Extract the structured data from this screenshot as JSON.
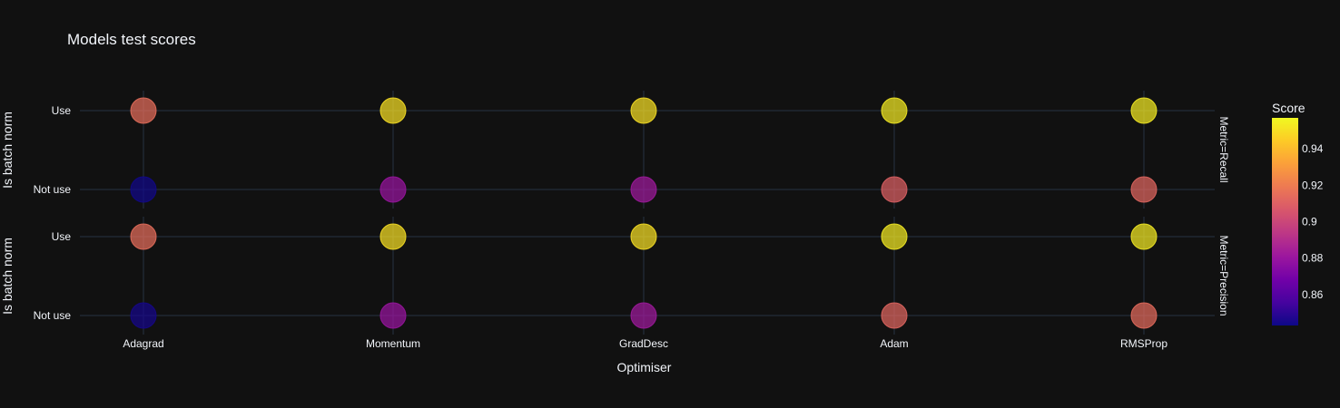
{
  "chart_data": {
    "type": "scatter",
    "title": "Models test scores",
    "xlabel": "Optimiser",
    "ylabel": "Is batch norm",
    "categories": [
      "Adagrad",
      "Momentum",
      "GradDesc",
      "Adam",
      "RMSProp"
    ],
    "y_categories": [
      "Not use",
      "Use"
    ],
    "facets": [
      {
        "label": "Metric=Recall",
        "points": [
          {
            "x": "Adagrad",
            "y": "Use",
            "score": 0.915
          },
          {
            "x": "Momentum",
            "y": "Use",
            "score": 0.95
          },
          {
            "x": "GradDesc",
            "y": "Use",
            "score": 0.95
          },
          {
            "x": "Adam",
            "y": "Use",
            "score": 0.953
          },
          {
            "x": "RMSProp",
            "y": "Use",
            "score": 0.953
          },
          {
            "x": "Adagrad",
            "y": "Not use",
            "score": 0.844
          },
          {
            "x": "Momentum",
            "y": "Not use",
            "score": 0.88
          },
          {
            "x": "GradDesc",
            "y": "Not use",
            "score": 0.882
          },
          {
            "x": "Adam",
            "y": "Not use",
            "score": 0.91
          },
          {
            "x": "RMSProp",
            "y": "Not use",
            "score": 0.912
          }
        ]
      },
      {
        "label": "Metric=Precision",
        "points": [
          {
            "x": "Adagrad",
            "y": "Use",
            "score": 0.915
          },
          {
            "x": "Momentum",
            "y": "Use",
            "score": 0.95
          },
          {
            "x": "GradDesc",
            "y": "Use",
            "score": 0.95
          },
          {
            "x": "Adam",
            "y": "Use",
            "score": 0.953
          },
          {
            "x": "RMSProp",
            "y": "Use",
            "score": 0.953
          },
          {
            "x": "Adagrad",
            "y": "Not use",
            "score": 0.845
          },
          {
            "x": "Momentum",
            "y": "Not use",
            "score": 0.88
          },
          {
            "x": "GradDesc",
            "y": "Not use",
            "score": 0.882
          },
          {
            "x": "Adam",
            "y": "Not use",
            "score": 0.912
          },
          {
            "x": "RMSProp",
            "y": "Not use",
            "score": 0.914
          }
        ]
      }
    ],
    "colorbar": {
      "title": "Score",
      "range": [
        0.843,
        0.957
      ],
      "ticks": [
        0.86,
        0.88,
        0.9,
        0.92,
        0.94
      ]
    },
    "grid": true,
    "legend": "none"
  }
}
